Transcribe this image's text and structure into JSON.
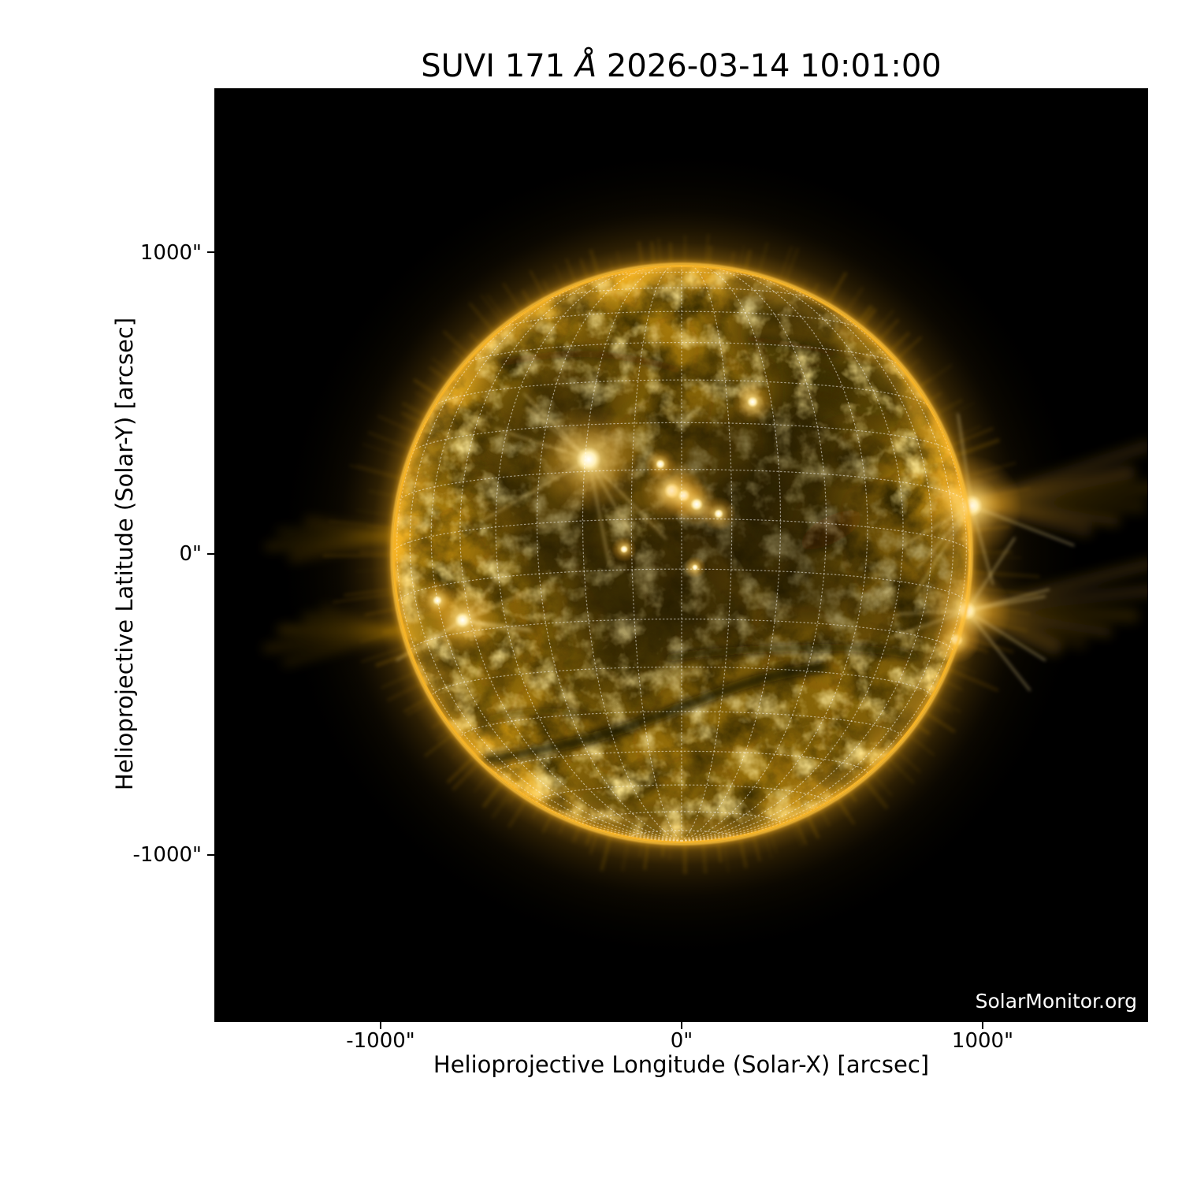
{
  "title": {
    "prefix": "SUVI 171 ",
    "angstrom": "Å",
    "suffix": " 2026-03-14 10:01:00",
    "full": "SUVI 171 Å 2026-03-14 10:01:00"
  },
  "axes": {
    "xlabel": "Helioprojective Longitude (Solar-X) [arcsec]",
    "ylabel": "Helioprojective Latitude (Solar-Y) [arcsec]",
    "x_ticks": [
      "-1000\"",
      "0\"",
      "1000\""
    ],
    "y_ticks": [
      "1000\"",
      "0\"",
      "-1000\""
    ]
  },
  "watermark": "SolarMonitor.org",
  "chart_data": {
    "type": "heatmap",
    "title": "SUVI 171 Å 2026-03-14 10:01:00",
    "instrument": "SUVI",
    "wavelength_label": "171 Å",
    "timestamp": "2026-03-14 10:01:00",
    "xlabel": "Helioprojective Longitude (Solar-X) [arcsec]",
    "ylabel": "Helioprojective Latitude (Solar-Y) [arcsec]",
    "xlim": [
      -1550,
      1550
    ],
    "ylim": [
      -1550,
      1550
    ],
    "x_tick_values": [
      -1000,
      0,
      1000
    ],
    "y_tick_values": [
      1000,
      0,
      -1000
    ],
    "grid": "dotted heliographic grid, 10 degree spacing, overlaid on disk",
    "legend_position": "none",
    "solar_disk_radius_arcsec": 960,
    "content": "Full-disk solar EUV image in gold colormap on black sky: bright active regions near disk center-left and on the east limb, two very bright active regions on the west limb with long coronal streamers extending right, dark sinuous filament channels south of disk center, bright thin limb rim with faint radial spicule fringe all around",
    "colors": {
      "sky_background": "#000000",
      "page_background": "#ffffff",
      "quiet_sun": "#a87c0a",
      "limb_rim": "#f5b62a",
      "active_region_core": "#ffffff",
      "filament_channel": "#140e02",
      "grid_overlay": "#ffffff",
      "watermark_text": "#ffffff",
      "axis_text": "#000000"
    }
  }
}
